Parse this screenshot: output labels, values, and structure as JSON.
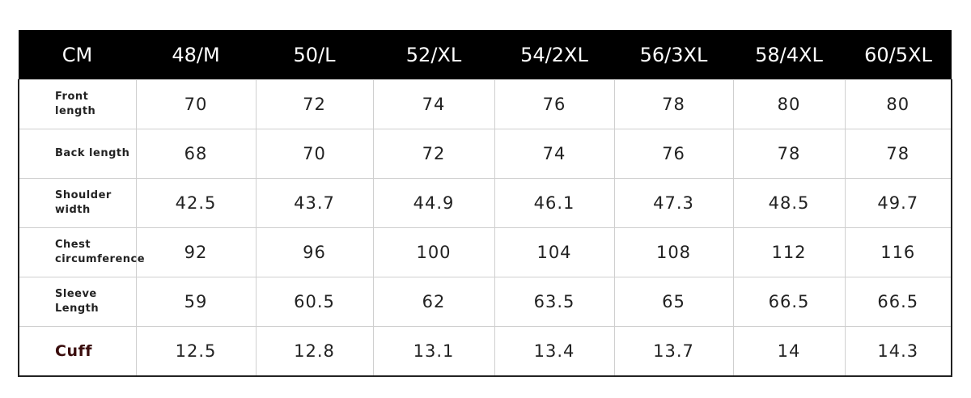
{
  "table": {
    "header": [
      "CM",
      "48/M",
      "50/L",
      "52/XL",
      "54/2XL",
      "56/3XL",
      "58/4XL",
      "60/5XL"
    ],
    "rows": [
      {
        "label": [
          "Front",
          "length"
        ],
        "cells": [
          "70",
          "72",
          "74",
          "76",
          "78",
          "80",
          "80"
        ]
      },
      {
        "label": [
          "Back length"
        ],
        "cells": [
          "68",
          "70",
          "72",
          "74",
          "76",
          "78",
          "78"
        ]
      },
      {
        "label": [
          "Shoulder",
          "width"
        ],
        "cells": [
          "42.5",
          "43.7",
          "44.9",
          "46.1",
          "47.3",
          "48.5",
          "49.7"
        ]
      },
      {
        "label": [
          "Chest",
          "circumference"
        ],
        "cells": [
          "92",
          "96",
          "100",
          "104",
          "108",
          "112",
          "116"
        ]
      },
      {
        "label": [
          "Sleeve",
          "Length"
        ],
        "cells": [
          "59",
          "60.5",
          "62",
          "63.5",
          "65",
          "66.5",
          "66.5"
        ]
      },
      {
        "label": [
          "Cuff"
        ],
        "cells": [
          "12.5",
          "12.8",
          "13.1",
          "13.4",
          "13.7",
          "14",
          "14.3"
        ]
      }
    ]
  }
}
